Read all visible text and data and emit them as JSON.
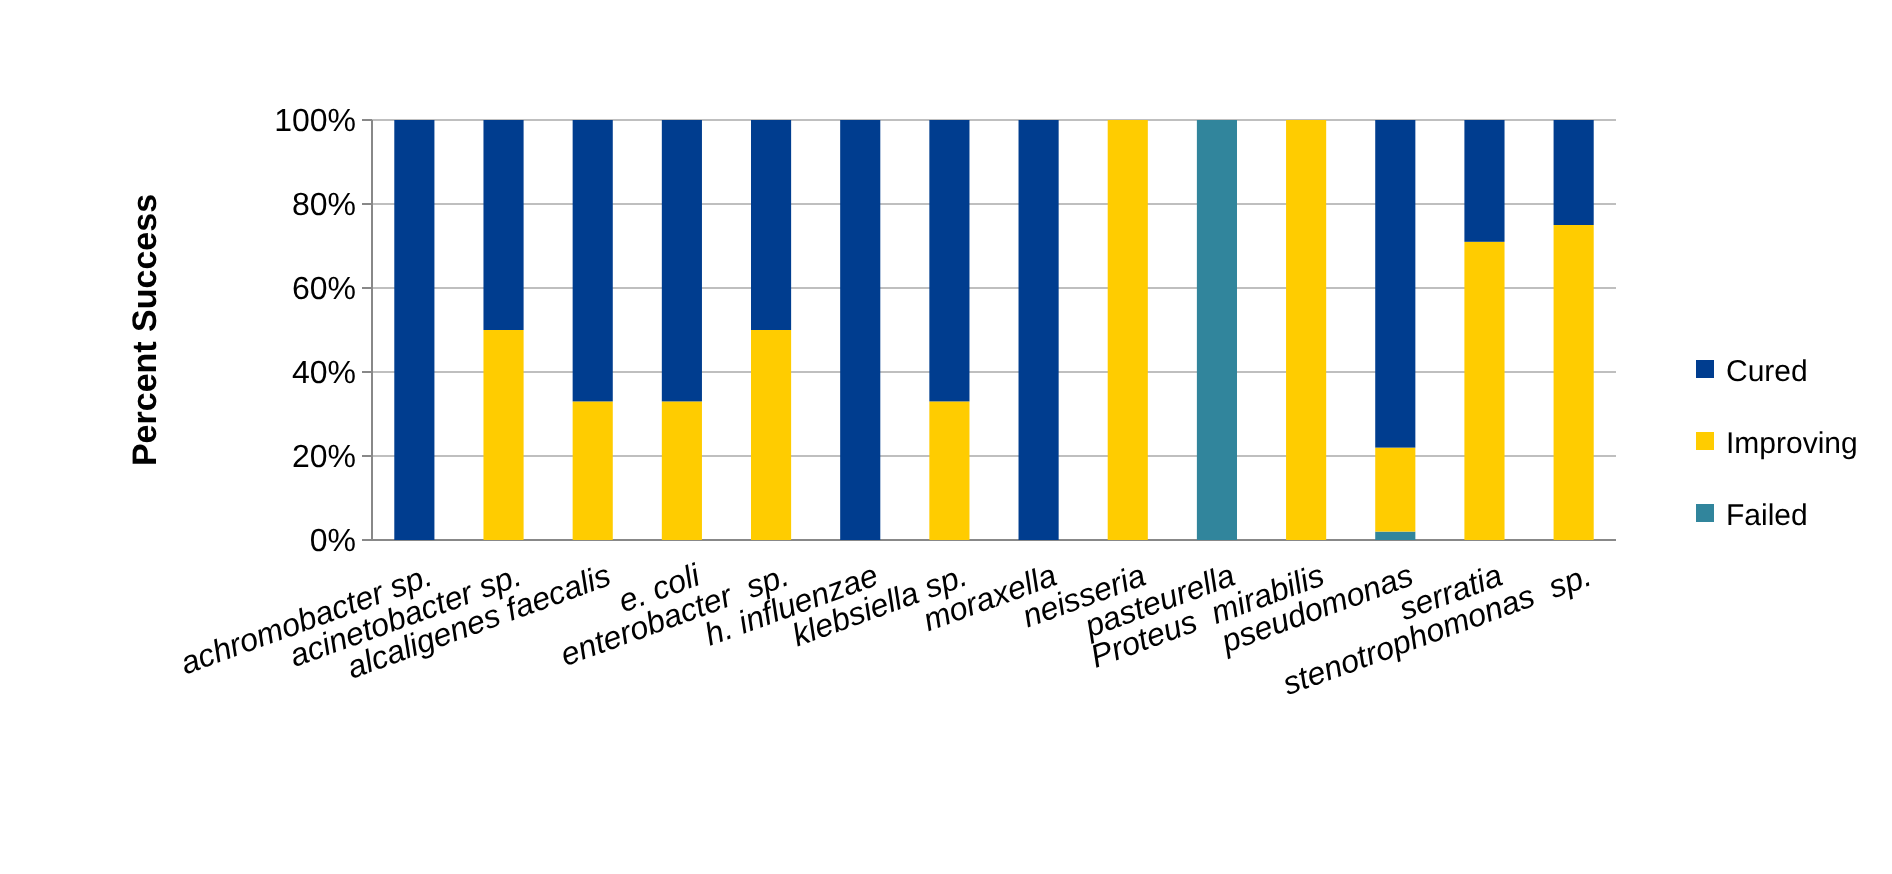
{
  "chart_data": {
    "type": "bar",
    "stacked": true,
    "ylabel": "Percent Success",
    "categories": [
      "achromobacter sp.",
      "acinetobacter sp.",
      "alcaligenes faecalis",
      "e. coli",
      "enterobacter  sp.",
      "h. influenzae",
      "klebsiella sp.",
      "moraxella",
      "neisseria",
      "pasteurella",
      "Proteus  mirabilis",
      "pseudomonas",
      "serratia",
      "stenotrophomonas  sp."
    ],
    "series": [
      {
        "name": "Failed",
        "color": "#31859c",
        "values": [
          0,
          0,
          0,
          0,
          0,
          0,
          0,
          0,
          0,
          100,
          0,
          2,
          0,
          0
        ]
      },
      {
        "name": "Improving",
        "color": "#ffcc00",
        "values": [
          0,
          50,
          33,
          33,
          50,
          0,
          33,
          0,
          100,
          0,
          100,
          20,
          71,
          75
        ]
      },
      {
        "name": "Cured",
        "color": "#003d8f",
        "values": [
          100,
          50,
          67,
          67,
          50,
          100,
          67,
          100,
          0,
          0,
          0,
          78,
          29,
          25
        ]
      }
    ],
    "ylim": [
      0,
      100
    ],
    "yticks": [
      {
        "value": 0,
        "label": "0%"
      },
      {
        "value": 20,
        "label": "20%"
      },
      {
        "value": 40,
        "label": "40%"
      },
      {
        "value": 60,
        "label": "60%"
      },
      {
        "value": 80,
        "label": "80%"
      },
      {
        "value": 100,
        "label": "100%"
      }
    ],
    "grid": "y",
    "legend": "right"
  }
}
